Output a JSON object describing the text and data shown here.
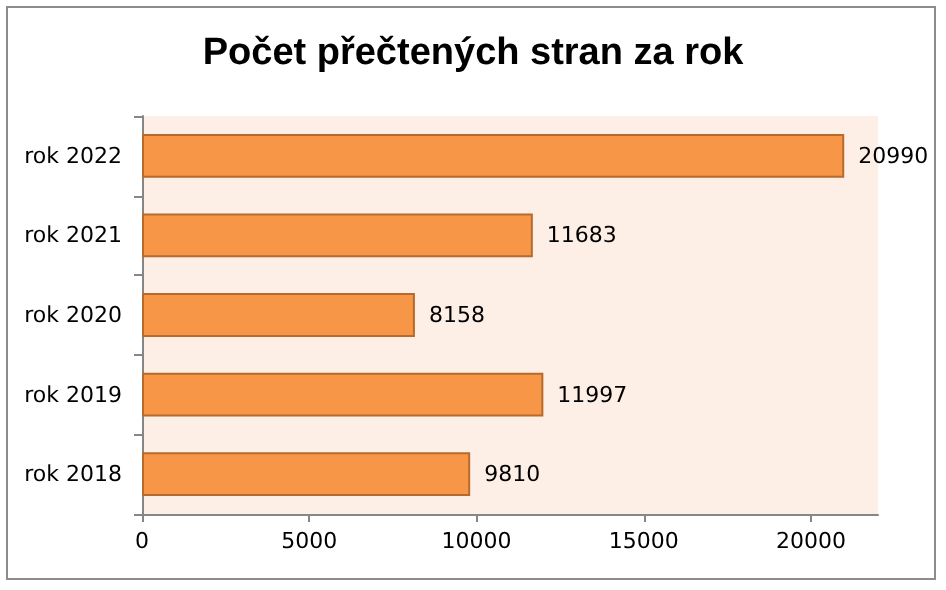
{
  "chart_data": {
    "type": "bar",
    "orientation": "horizontal",
    "title": "Počet přečtených stran za rok",
    "categories": [
      "rok 2022",
      "rok 2021",
      "rok 2020",
      "rok 2019",
      "rok 2018"
    ],
    "values": [
      20990,
      11683,
      8158,
      11997,
      9810
    ],
    "color": "#f79646",
    "xlim": [
      0,
      22000
    ],
    "xticks": [
      0,
      5000,
      10000,
      15000,
      20000
    ],
    "grid": false,
    "data_labels": true
  }
}
